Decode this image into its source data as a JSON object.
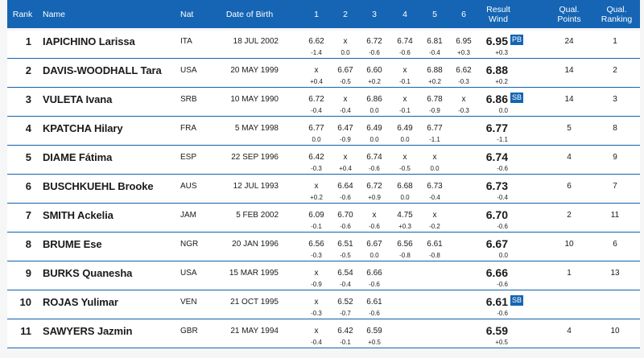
{
  "header": {
    "rank": "Rank",
    "name": "Name",
    "nat": "Nat",
    "dob": "Date of Birth",
    "attempts": [
      "1",
      "2",
      "3",
      "4",
      "5",
      "6"
    ],
    "result_line1": "Result",
    "result_line2": "Wind",
    "points_line1": "Qual.",
    "points_line2": "Points",
    "ranking_line1": "Qual.",
    "ranking_line2": "Ranking"
  },
  "colors": {
    "header_bg": "#1565b4",
    "badge_bg": "#1565b4",
    "separator": "#1565b4"
  },
  "rows": [
    {
      "rank": "1",
      "name": "IAPICHINO Larissa",
      "nat": "ITA",
      "dob": "18 JUL 2002",
      "attempts": [
        "6.62",
        "x",
        "6.72",
        "6.74",
        "6.81",
        "6.95"
      ],
      "winds": [
        "-1.4",
        "0.0",
        "-0.6",
        "-0.6",
        "-0.4",
        "+0.3"
      ],
      "result": "6.95",
      "result_wind": "+0.3",
      "badge": "PB",
      "points": "24",
      "ranking": "1"
    },
    {
      "rank": "2",
      "name": "DAVIS-WOODHALL Tara",
      "nat": "USA",
      "dob": "20 MAY 1999",
      "attempts": [
        "x",
        "6.67",
        "6.60",
        "x",
        "6.88",
        "6.62"
      ],
      "winds": [
        "+0.4",
        "-0.5",
        "+0.2",
        "-0.1",
        "+0.2",
        "-0.3"
      ],
      "result": "6.88",
      "result_wind": "+0.2",
      "badge": "",
      "points": "14",
      "ranking": "2"
    },
    {
      "rank": "3",
      "name": "VULETA Ivana",
      "nat": "SRB",
      "dob": "10 MAY 1990",
      "attempts": [
        "6.72",
        "x",
        "6.86",
        "x",
        "6.78",
        "x"
      ],
      "winds": [
        "-0.4",
        "-0.4",
        "0.0",
        "-0.1",
        "-0.9",
        "-0.3"
      ],
      "result": "6.86",
      "result_wind": "0.0",
      "badge": "SB",
      "points": "14",
      "ranking": "3"
    },
    {
      "rank": "4",
      "name": "KPATCHA Hilary",
      "nat": "FRA",
      "dob": "5 MAY 1998",
      "attempts": [
        "6.77",
        "6.47",
        "6.49",
        "6.49",
        "6.77",
        ""
      ],
      "winds": [
        "0.0",
        "-0.9",
        "0.0",
        "0.0",
        "-1.1",
        ""
      ],
      "result": "6.77",
      "result_wind": "-1.1",
      "badge": "",
      "points": "5",
      "ranking": "8"
    },
    {
      "rank": "5",
      "name": "DIAME Fátima",
      "nat": "ESP",
      "dob": "22 SEP 1996",
      "attempts": [
        "6.42",
        "x",
        "6.74",
        "x",
        "x",
        ""
      ],
      "winds": [
        "-0.3",
        "+0.4",
        "-0.6",
        "-0.5",
        "0.0",
        ""
      ],
      "result": "6.74",
      "result_wind": "-0.6",
      "badge": "",
      "points": "4",
      "ranking": "9"
    },
    {
      "rank": "6",
      "name": "BUSCHKUEHL Brooke",
      "nat": "AUS",
      "dob": "12 JUL 1993",
      "attempts": [
        "x",
        "6.64",
        "6.72",
        "6.68",
        "6.73",
        ""
      ],
      "winds": [
        "+0.2",
        "-0.6",
        "+0.9",
        "0.0",
        "-0.4",
        ""
      ],
      "result": "6.73",
      "result_wind": "-0.4",
      "badge": "",
      "points": "6",
      "ranking": "7"
    },
    {
      "rank": "7",
      "name": "SMITH Ackelia",
      "nat": "JAM",
      "dob": "5 FEB 2002",
      "attempts": [
        "6.09",
        "6.70",
        "x",
        "4.75",
        "x",
        ""
      ],
      "winds": [
        "-0.1",
        "-0.6",
        "-0.6",
        "+0.3",
        "-0.2",
        ""
      ],
      "result": "6.70",
      "result_wind": "-0.6",
      "badge": "",
      "points": "2",
      "ranking": "11"
    },
    {
      "rank": "8",
      "name": "BRUME Ese",
      "nat": "NGR",
      "dob": "20 JAN 1996",
      "attempts": [
        "6.56",
        "6.51",
        "6.67",
        "6.56",
        "6.61",
        ""
      ],
      "winds": [
        "-0.3",
        "-0.5",
        "0.0",
        "-0.8",
        "-0.8",
        ""
      ],
      "result": "6.67",
      "result_wind": "0.0",
      "badge": "",
      "points": "10",
      "ranking": "6"
    },
    {
      "rank": "9",
      "name": "BURKS Quanesha",
      "nat": "USA",
      "dob": "15 MAR 1995",
      "attempts": [
        "x",
        "6.54",
        "6.66",
        "",
        "",
        ""
      ],
      "winds": [
        "-0.9",
        "-0.4",
        "-0.6",
        "",
        "",
        ""
      ],
      "result": "6.66",
      "result_wind": "-0.6",
      "badge": "",
      "points": "1",
      "ranking": "13"
    },
    {
      "rank": "10",
      "name": "ROJAS Yulimar",
      "nat": "VEN",
      "dob": "21 OCT 1995",
      "attempts": [
        "x",
        "6.52",
        "6.61",
        "",
        "",
        ""
      ],
      "winds": [
        "-0.3",
        "-0.7",
        "-0.6",
        "",
        "",
        ""
      ],
      "result": "6.61",
      "result_wind": "-0.6",
      "badge": "SB",
      "points": "",
      "ranking": ""
    },
    {
      "rank": "11",
      "name": "SAWYERS Jazmin",
      "nat": "GBR",
      "dob": "21 MAY 1994",
      "attempts": [
        "x",
        "6.42",
        "6.59",
        "",
        "",
        ""
      ],
      "winds": [
        "-0.4",
        "-0.1",
        "+0.5",
        "",
        "",
        ""
      ],
      "result": "6.59",
      "result_wind": "+0.5",
      "badge": "",
      "points": "4",
      "ranking": "10"
    }
  ]
}
